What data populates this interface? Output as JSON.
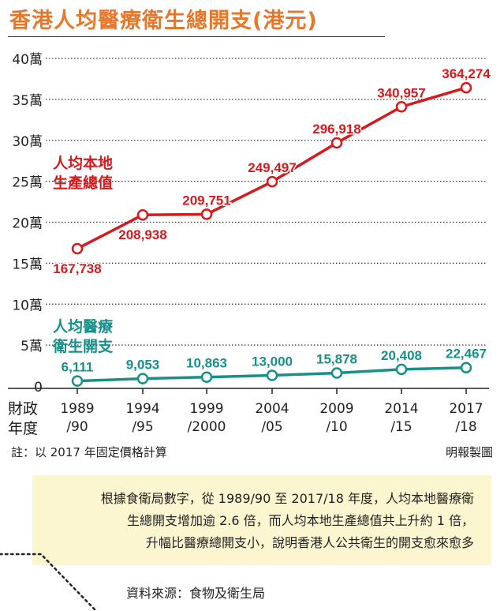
{
  "title": "香港人均醫療衛生總開支(港元)",
  "fiscal_label": [
    "財政",
    "年度"
  ],
  "note": "註：以 2017 年固定價格計算",
  "credit": "明報製圖",
  "callout": {
    "lines": [
      "根據食衛局數字，從 1989/90 至 2017/18 年度，人均本地醫療衛",
      "生總開支增加逾 2.6 倍，而人均本地生產總值共上升約 1 倍，",
      "升幅比醫療總開支小，說明香港人公共衛生的開支愈來愈多"
    ]
  },
  "source": "資料來源：食物及衛生局",
  "colors": {
    "title": "#e8772e",
    "gdp": "#d7191c",
    "health": "#17908a",
    "callout_bg": "#fbf6cf"
  },
  "chart_data": {
    "type": "line",
    "x": [
      "1989/90",
      "1994/95",
      "1999/2000",
      "2004/05",
      "2009/10",
      "2014/15",
      "2017/18"
    ],
    "x_ticks": [
      [
        "1989",
        "/90"
      ],
      [
        "1994",
        "/95"
      ],
      [
        "1999",
        "/2000"
      ],
      [
        "2004",
        "/05"
      ],
      [
        "2009",
        "/10"
      ],
      [
        "2014",
        "/15"
      ],
      [
        "2017",
        "/18"
      ]
    ],
    "y_ticks": [
      {
        "value": 0,
        "label": "0"
      },
      {
        "value": 50000,
        "label": "5萬"
      },
      {
        "value": 100000,
        "label": "10萬"
      },
      {
        "value": 150000,
        "label": "15萬"
      },
      {
        "value": 200000,
        "label": "20萬"
      },
      {
        "value": 250000,
        "label": "25萬"
      },
      {
        "value": 300000,
        "label": "30萬"
      },
      {
        "value": 350000,
        "label": "35萬"
      },
      {
        "value": 400000,
        "label": "40萬"
      }
    ],
    "ylim": [
      0,
      400000
    ],
    "grid": "dotted horizontal",
    "series": [
      {
        "name": "人均本地生產總值",
        "name_lines": [
          "人均本地",
          "生產總值"
        ],
        "color": "#d7191c",
        "values": [
          167738,
          208938,
          209751,
          249497,
          296918,
          340957,
          364274
        ],
        "labels": [
          "167,738",
          "208,938",
          "209,751",
          "249,497",
          "296,918",
          "340,957",
          "364,274"
        ],
        "label_pos": [
          "below",
          "below",
          "above",
          "above",
          "above",
          "above",
          "above"
        ]
      },
      {
        "name": "人均醫療衛生開支",
        "name_lines": [
          "人均醫療",
          "衛生開支"
        ],
        "color": "#17908a",
        "values": [
          6111,
          9053,
          10863,
          13000,
          15878,
          20408,
          22467
        ],
        "labels": [
          "6,111",
          "9,053",
          "10,863",
          "13,000",
          "15,878",
          "20,408",
          "22,467"
        ],
        "label_pos": [
          "above",
          "above",
          "above",
          "above",
          "above",
          "above",
          "above"
        ]
      }
    ]
  }
}
